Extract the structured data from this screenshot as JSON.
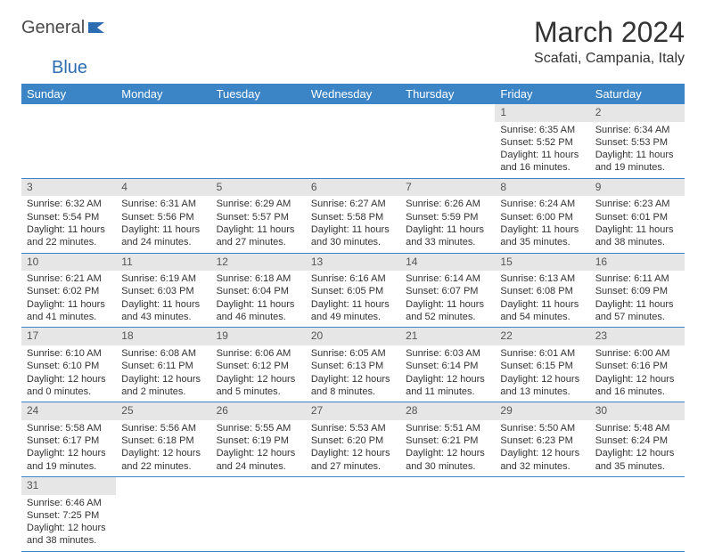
{
  "logo": {
    "word1": "General",
    "word2": "Blue"
  },
  "title": "March 2024",
  "location": "Scafati, Campania, Italy",
  "colors": {
    "header_bg": "#3b85c6",
    "header_text": "#ffffff",
    "daynum_bg": "#e6e6e6",
    "row_border": "#3b85c6",
    "logo_gray": "#4a4a4a",
    "logo_blue": "#2c6cb0"
  },
  "typography": {
    "title_fontsize": 32,
    "location_fontsize": 16,
    "dow_fontsize": 13,
    "day_fontsize": 11
  },
  "days_of_week": [
    "Sunday",
    "Monday",
    "Tuesday",
    "Wednesday",
    "Thursday",
    "Friday",
    "Saturday"
  ],
  "weeks": [
    [
      {
        "n": "",
        "sr": "",
        "ss": "",
        "dl": ""
      },
      {
        "n": "",
        "sr": "",
        "ss": "",
        "dl": ""
      },
      {
        "n": "",
        "sr": "",
        "ss": "",
        "dl": ""
      },
      {
        "n": "",
        "sr": "",
        "ss": "",
        "dl": ""
      },
      {
        "n": "",
        "sr": "",
        "ss": "",
        "dl": ""
      },
      {
        "n": "1",
        "sr": "Sunrise: 6:35 AM",
        "ss": "Sunset: 5:52 PM",
        "dl": "Daylight: 11 hours and 16 minutes."
      },
      {
        "n": "2",
        "sr": "Sunrise: 6:34 AM",
        "ss": "Sunset: 5:53 PM",
        "dl": "Daylight: 11 hours and 19 minutes."
      }
    ],
    [
      {
        "n": "3",
        "sr": "Sunrise: 6:32 AM",
        "ss": "Sunset: 5:54 PM",
        "dl": "Daylight: 11 hours and 22 minutes."
      },
      {
        "n": "4",
        "sr": "Sunrise: 6:31 AM",
        "ss": "Sunset: 5:56 PM",
        "dl": "Daylight: 11 hours and 24 minutes."
      },
      {
        "n": "5",
        "sr": "Sunrise: 6:29 AM",
        "ss": "Sunset: 5:57 PM",
        "dl": "Daylight: 11 hours and 27 minutes."
      },
      {
        "n": "6",
        "sr": "Sunrise: 6:27 AM",
        "ss": "Sunset: 5:58 PM",
        "dl": "Daylight: 11 hours and 30 minutes."
      },
      {
        "n": "7",
        "sr": "Sunrise: 6:26 AM",
        "ss": "Sunset: 5:59 PM",
        "dl": "Daylight: 11 hours and 33 minutes."
      },
      {
        "n": "8",
        "sr": "Sunrise: 6:24 AM",
        "ss": "Sunset: 6:00 PM",
        "dl": "Daylight: 11 hours and 35 minutes."
      },
      {
        "n": "9",
        "sr": "Sunrise: 6:23 AM",
        "ss": "Sunset: 6:01 PM",
        "dl": "Daylight: 11 hours and 38 minutes."
      }
    ],
    [
      {
        "n": "10",
        "sr": "Sunrise: 6:21 AM",
        "ss": "Sunset: 6:02 PM",
        "dl": "Daylight: 11 hours and 41 minutes."
      },
      {
        "n": "11",
        "sr": "Sunrise: 6:19 AM",
        "ss": "Sunset: 6:03 PM",
        "dl": "Daylight: 11 hours and 43 minutes."
      },
      {
        "n": "12",
        "sr": "Sunrise: 6:18 AM",
        "ss": "Sunset: 6:04 PM",
        "dl": "Daylight: 11 hours and 46 minutes."
      },
      {
        "n": "13",
        "sr": "Sunrise: 6:16 AM",
        "ss": "Sunset: 6:05 PM",
        "dl": "Daylight: 11 hours and 49 minutes."
      },
      {
        "n": "14",
        "sr": "Sunrise: 6:14 AM",
        "ss": "Sunset: 6:07 PM",
        "dl": "Daylight: 11 hours and 52 minutes."
      },
      {
        "n": "15",
        "sr": "Sunrise: 6:13 AM",
        "ss": "Sunset: 6:08 PM",
        "dl": "Daylight: 11 hours and 54 minutes."
      },
      {
        "n": "16",
        "sr": "Sunrise: 6:11 AM",
        "ss": "Sunset: 6:09 PM",
        "dl": "Daylight: 11 hours and 57 minutes."
      }
    ],
    [
      {
        "n": "17",
        "sr": "Sunrise: 6:10 AM",
        "ss": "Sunset: 6:10 PM",
        "dl": "Daylight: 12 hours and 0 minutes."
      },
      {
        "n": "18",
        "sr": "Sunrise: 6:08 AM",
        "ss": "Sunset: 6:11 PM",
        "dl": "Daylight: 12 hours and 2 minutes."
      },
      {
        "n": "19",
        "sr": "Sunrise: 6:06 AM",
        "ss": "Sunset: 6:12 PM",
        "dl": "Daylight: 12 hours and 5 minutes."
      },
      {
        "n": "20",
        "sr": "Sunrise: 6:05 AM",
        "ss": "Sunset: 6:13 PM",
        "dl": "Daylight: 12 hours and 8 minutes."
      },
      {
        "n": "21",
        "sr": "Sunrise: 6:03 AM",
        "ss": "Sunset: 6:14 PM",
        "dl": "Daylight: 12 hours and 11 minutes."
      },
      {
        "n": "22",
        "sr": "Sunrise: 6:01 AM",
        "ss": "Sunset: 6:15 PM",
        "dl": "Daylight: 12 hours and 13 minutes."
      },
      {
        "n": "23",
        "sr": "Sunrise: 6:00 AM",
        "ss": "Sunset: 6:16 PM",
        "dl": "Daylight: 12 hours and 16 minutes."
      }
    ],
    [
      {
        "n": "24",
        "sr": "Sunrise: 5:58 AM",
        "ss": "Sunset: 6:17 PM",
        "dl": "Daylight: 12 hours and 19 minutes."
      },
      {
        "n": "25",
        "sr": "Sunrise: 5:56 AM",
        "ss": "Sunset: 6:18 PM",
        "dl": "Daylight: 12 hours and 22 minutes."
      },
      {
        "n": "26",
        "sr": "Sunrise: 5:55 AM",
        "ss": "Sunset: 6:19 PM",
        "dl": "Daylight: 12 hours and 24 minutes."
      },
      {
        "n": "27",
        "sr": "Sunrise: 5:53 AM",
        "ss": "Sunset: 6:20 PM",
        "dl": "Daylight: 12 hours and 27 minutes."
      },
      {
        "n": "28",
        "sr": "Sunrise: 5:51 AM",
        "ss": "Sunset: 6:21 PM",
        "dl": "Daylight: 12 hours and 30 minutes."
      },
      {
        "n": "29",
        "sr": "Sunrise: 5:50 AM",
        "ss": "Sunset: 6:23 PM",
        "dl": "Daylight: 12 hours and 32 minutes."
      },
      {
        "n": "30",
        "sr": "Sunrise: 5:48 AM",
        "ss": "Sunset: 6:24 PM",
        "dl": "Daylight: 12 hours and 35 minutes."
      }
    ],
    [
      {
        "n": "31",
        "sr": "Sunrise: 6:46 AM",
        "ss": "Sunset: 7:25 PM",
        "dl": "Daylight: 12 hours and 38 minutes."
      },
      {
        "n": "",
        "sr": "",
        "ss": "",
        "dl": ""
      },
      {
        "n": "",
        "sr": "",
        "ss": "",
        "dl": ""
      },
      {
        "n": "",
        "sr": "",
        "ss": "",
        "dl": ""
      },
      {
        "n": "",
        "sr": "",
        "ss": "",
        "dl": ""
      },
      {
        "n": "",
        "sr": "",
        "ss": "",
        "dl": ""
      },
      {
        "n": "",
        "sr": "",
        "ss": "",
        "dl": ""
      }
    ]
  ]
}
